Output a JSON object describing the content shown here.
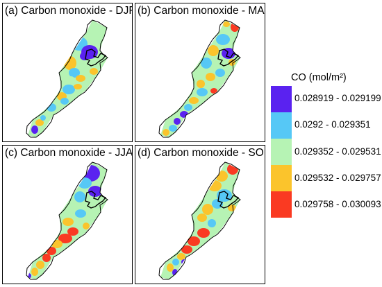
{
  "panels": [
    {
      "title": "(a) Carbon monoxide - DJF",
      "season": "DJF"
    },
    {
      "title": "(b) Carbon monoxide - MAM",
      "season": "MAM"
    },
    {
      "title": "(c) Carbon monoxide - JJA",
      "season": "JJA"
    },
    {
      "title": "(d) Carbon monoxide - SON",
      "season": "SON"
    }
  ],
  "legend": {
    "title": "CO (mol/m²)",
    "classes": [
      {
        "label": "0.028919 - 0.029199",
        "color": "#5a22f0"
      },
      {
        "label": "0.0292 - 0.029351",
        "color": "#56c8f6"
      },
      {
        "label": "0.029352 - 0.029531",
        "color": "#b6f3b4"
      },
      {
        "label": "0.029532 - 0.029757",
        "color": "#fbc42c"
      },
      {
        "label": "0.029758 - 0.030093",
        "color": "#fa3a22"
      }
    ]
  }
}
